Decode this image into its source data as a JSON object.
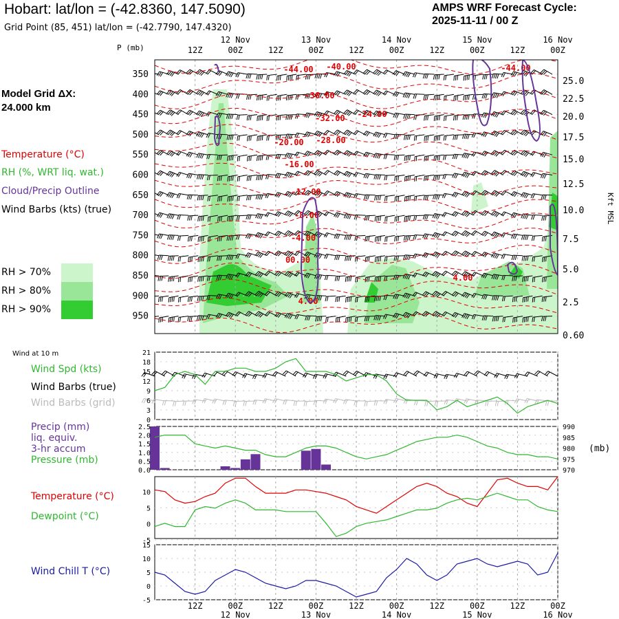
{
  "header": {
    "title": "Hobart:  lat/lon = (-42.8360, 147.5090)",
    "subtitle": "Grid Point (85, 451) lat/lon = (-42.7790, 147.4320)",
    "cycle_line1": "AMPS WRF Forecast Cycle:",
    "cycle_line2": "2025-11-11 / 00  Z",
    "model_grid_line1": "Model Grid ΔX:",
    "model_grid_line2": " 24.000 km"
  },
  "legend": {
    "temperature": "Temperature (°C)",
    "rh": "RH (%, WRT liq. wat.)",
    "cloud": "Cloud/Precip Outline",
    "wind": "Wind Barbs (kts) (true)",
    "rh70": "RH > 70%",
    "rh80": "RH > 80%",
    "rh90": "RH > 90%",
    "colors": {
      "rh70": "#ccf5cc",
      "rh80": "#99e699",
      "rh90": "#33cc33",
      "temp": "#e00000",
      "cloud": "#663399"
    }
  },
  "time_axis": {
    "ticks": [
      "12Z",
      "00Z",
      "12Z",
      "00Z",
      "12Z",
      "00Z",
      "12Z",
      "00Z",
      "12Z",
      "00Z"
    ],
    "dates": [
      "12 Nov",
      "13 Nov",
      "14 Nov",
      "15 Nov",
      "16 Nov"
    ]
  },
  "profile": {
    "p_label": "P (mb)",
    "pressure_ticks": [
      "350",
      "400",
      "450",
      "500",
      "550",
      "600",
      "650",
      "700",
      "750",
      "800",
      "850",
      "900",
      "950"
    ],
    "height_ticks": [
      "25.0",
      "22.5",
      "20.0",
      "17.5",
      "15.0",
      "12.5",
      "10.0",
      "7.5",
      "5.0",
      "2.5",
      "0.60"
    ],
    "height_label": "Kft MSL",
    "isotherm_labels": [
      "-44.00",
      "-40.00",
      "-36.00",
      "-32.00",
      "-24.00",
      "-28.00",
      "-20.00",
      "-16.00",
      "-12.00",
      "-8.00",
      "-4.00",
      "00.00",
      "4.00",
      "4.00",
      "-44.00"
    ]
  },
  "wind_panel": {
    "title": "Wind at 10 m",
    "spd_label": "Wind Spd (kts)",
    "barbs_true": "Wind Barbs (true)",
    "barbs_grid": "Wind Barbs (grid)",
    "y_ticks": [
      "21",
      "18",
      "15",
      "12",
      "9",
      "6",
      "3",
      "0"
    ]
  },
  "precip_panel": {
    "label1": "Precip (mm)",
    "label2": "liq. equiv.",
    "label3": "3-hr accum",
    "label4": "Pressure (mb)",
    "y_ticks_left": [
      "2.5",
      "2.0",
      "1.5",
      "1.0",
      "0.5",
      "0.0"
    ],
    "y_ticks_right": [
      "990",
      "985",
      "980",
      "975",
      "970"
    ],
    "unit_right": "(mb)"
  },
  "temp_panel": {
    "temp_label": "Temperature (°C)",
    "dew_label": "Dewpoint (°C)",
    "y_ticks": [
      "10",
      "5",
      "0",
      "-5"
    ]
  },
  "chill_panel": {
    "label": "Wind Chill T (°C)",
    "y_ticks": [
      "15",
      "10",
      "5",
      "0",
      "-5"
    ]
  },
  "chart_data": {
    "type": "line",
    "x": [
      "11/00",
      "11/03",
      "11/06",
      "11/09",
      "11/12",
      "11/15",
      "11/18",
      "11/21",
      "12/00",
      "12/03",
      "12/06",
      "12/09",
      "12/12",
      "12/15",
      "12/18",
      "12/21",
      "13/00",
      "13/03",
      "13/06",
      "13/09",
      "13/12",
      "13/15",
      "13/18",
      "13/21",
      "14/00",
      "14/03",
      "14/06",
      "14/09",
      "14/12",
      "14/15",
      "14/18",
      "14/21",
      "15/00",
      "15/03",
      "15/06",
      "15/09",
      "15/12",
      "15/15",
      "15/18",
      "15/21",
      "16/00"
    ],
    "series": [
      {
        "name": "Wind Spd (kts)",
        "values": [
          9,
          10,
          14,
          15,
          14,
          11,
          15,
          15,
          16,
          16,
          15,
          15,
          16,
          18,
          19,
          15,
          15,
          15,
          14,
          12,
          13,
          14,
          14,
          12,
          8,
          6,
          6,
          6,
          3,
          4,
          6,
          4,
          5,
          6,
          7,
          5,
          2,
          4,
          5,
          6,
          5
        ]
      },
      {
        "name": "Pressure (mb)",
        "values": [
          985,
          986,
          986,
          986,
          982,
          981,
          980,
          981,
          980,
          979,
          979,
          977,
          976,
          976,
          978,
          980,
          981,
          981,
          980,
          978,
          976,
          975,
          976,
          977,
          979,
          981,
          983,
          984,
          985,
          985,
          986,
          985,
          983,
          981,
          980,
          978,
          977,
          977,
          976,
          976,
          975
        ]
      },
      {
        "name": "Precip (mm)",
        "values": [
          2.5,
          0.1,
          0,
          0,
          0,
          0,
          0,
          0.2,
          0.1,
          0.6,
          0.9,
          0,
          0,
          0,
          0,
          1.1,
          1.2,
          0.3,
          0,
          0,
          0,
          0,
          0,
          0,
          0,
          0,
          0,
          0,
          0,
          0,
          0,
          0,
          0,
          0,
          0,
          0,
          0,
          0,
          0,
          0,
          0
        ]
      },
      {
        "name": "Temperature (°C)",
        "values": [
          10,
          9.5,
          7,
          6,
          6.5,
          8,
          9,
          12,
          13.5,
          13.5,
          11,
          9,
          9,
          9,
          10,
          10,
          9.5,
          9,
          8,
          7,
          5,
          4,
          3,
          5,
          7,
          9,
          11,
          12,
          11,
          9,
          8,
          6,
          5,
          9,
          13,
          13.5,
          12,
          11,
          11,
          10,
          14
        ]
      },
      {
        "name": "Dewpoint (°C)",
        "values": [
          -1,
          0,
          -1,
          -1,
          4,
          5,
          4.5,
          6,
          7,
          6,
          4,
          4,
          4,
          3.5,
          3.5,
          3.5,
          3.5,
          0,
          -4,
          -3,
          -1,
          0,
          0.5,
          1,
          2,
          3,
          4,
          4,
          4.5,
          6,
          7,
          7.5,
          7,
          8,
          9,
          8,
          7,
          7,
          5,
          4,
          3.5
        ]
      },
      {
        "name": "Wind Chill T (°C)",
        "values": [
          5,
          4,
          1,
          -2,
          -3,
          -2,
          2,
          4,
          6,
          5,
          3,
          1,
          0,
          -1,
          0,
          2,
          2,
          1,
          0,
          -2,
          -4,
          -3,
          -2,
          3,
          6,
          10,
          8,
          4,
          2,
          4,
          8,
          9,
          10,
          8,
          7,
          8,
          9,
          8,
          4,
          5,
          12
        ]
      }
    ]
  }
}
